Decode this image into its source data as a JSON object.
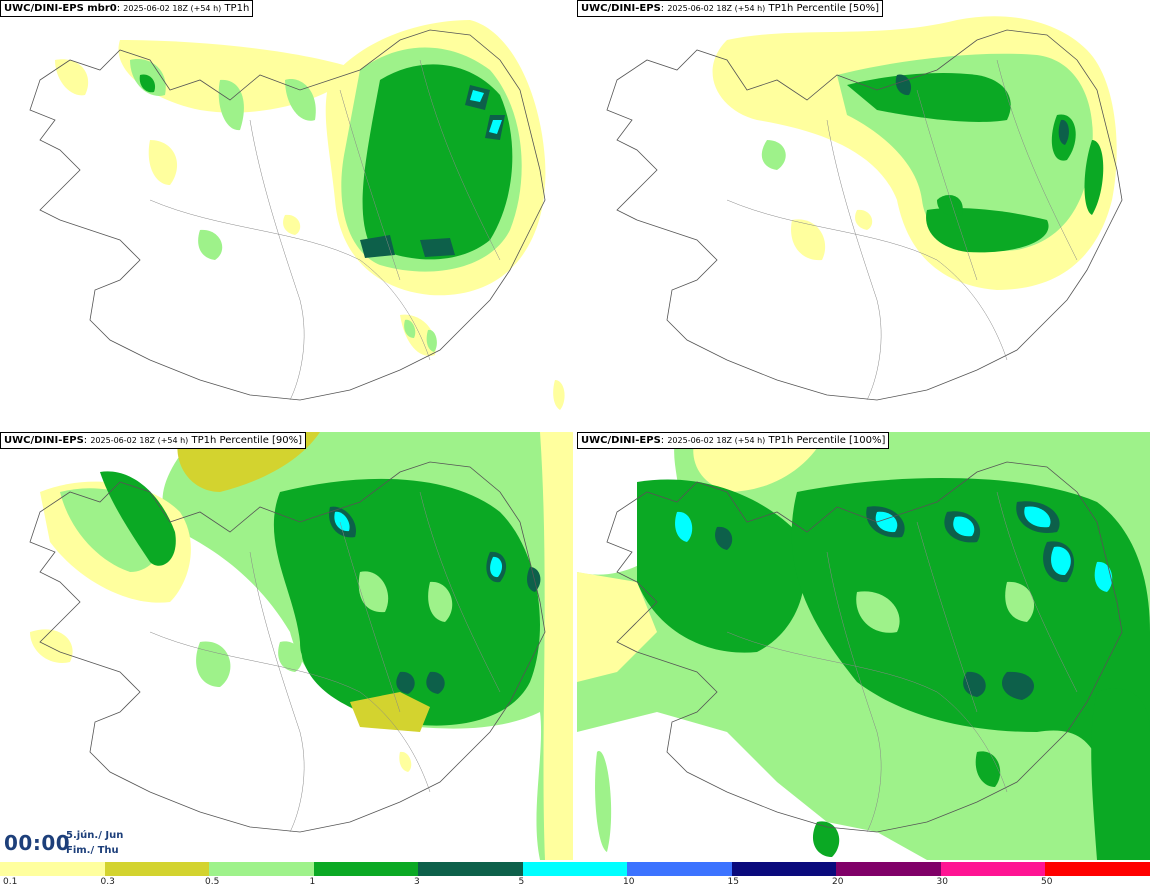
{
  "panels": [
    {
      "model": "UWC/DINI-EPS",
      "member": " mbr0",
      "run": "2025-06-02 18Z (+54 h)",
      "field": "TP1h",
      "percentile": ""
    },
    {
      "model": "UWC/DINI-EPS",
      "member": "",
      "run": "2025-06-02 18Z (+54 h)",
      "field": "TP1h Percentile [50%]",
      "percentile": "50%"
    },
    {
      "model": "UWC/DINI-EPS",
      "member": "",
      "run": "2025-06-02 18Z (+54 h)",
      "field": "TP1h Percentile [90%]",
      "percentile": "90%"
    },
    {
      "model": "UWC/DINI-EPS",
      "member": "",
      "run": "2025-06-02 18Z (+54 h)",
      "field": "TP1h Percentile [100%]",
      "percentile": "100%"
    }
  ],
  "time": {
    "clock": "00:00",
    "date_line": "5.jún./ Jun",
    "day_line": "Fim./ Thu"
  },
  "legend": {
    "levels": [
      "0.1",
      "0.3",
      "0.5",
      "1",
      "3",
      "5",
      "10",
      "15",
      "20",
      "30",
      "50"
    ],
    "colors": [
      "#ffff9e",
      "#d3d32f",
      "#9ef28a",
      "#0ba924",
      "#0d604a",
      "#00ffff",
      "#3c73ff",
      "#0a0a7c",
      "#800068",
      "#ff1493",
      "#ff0000"
    ]
  }
}
